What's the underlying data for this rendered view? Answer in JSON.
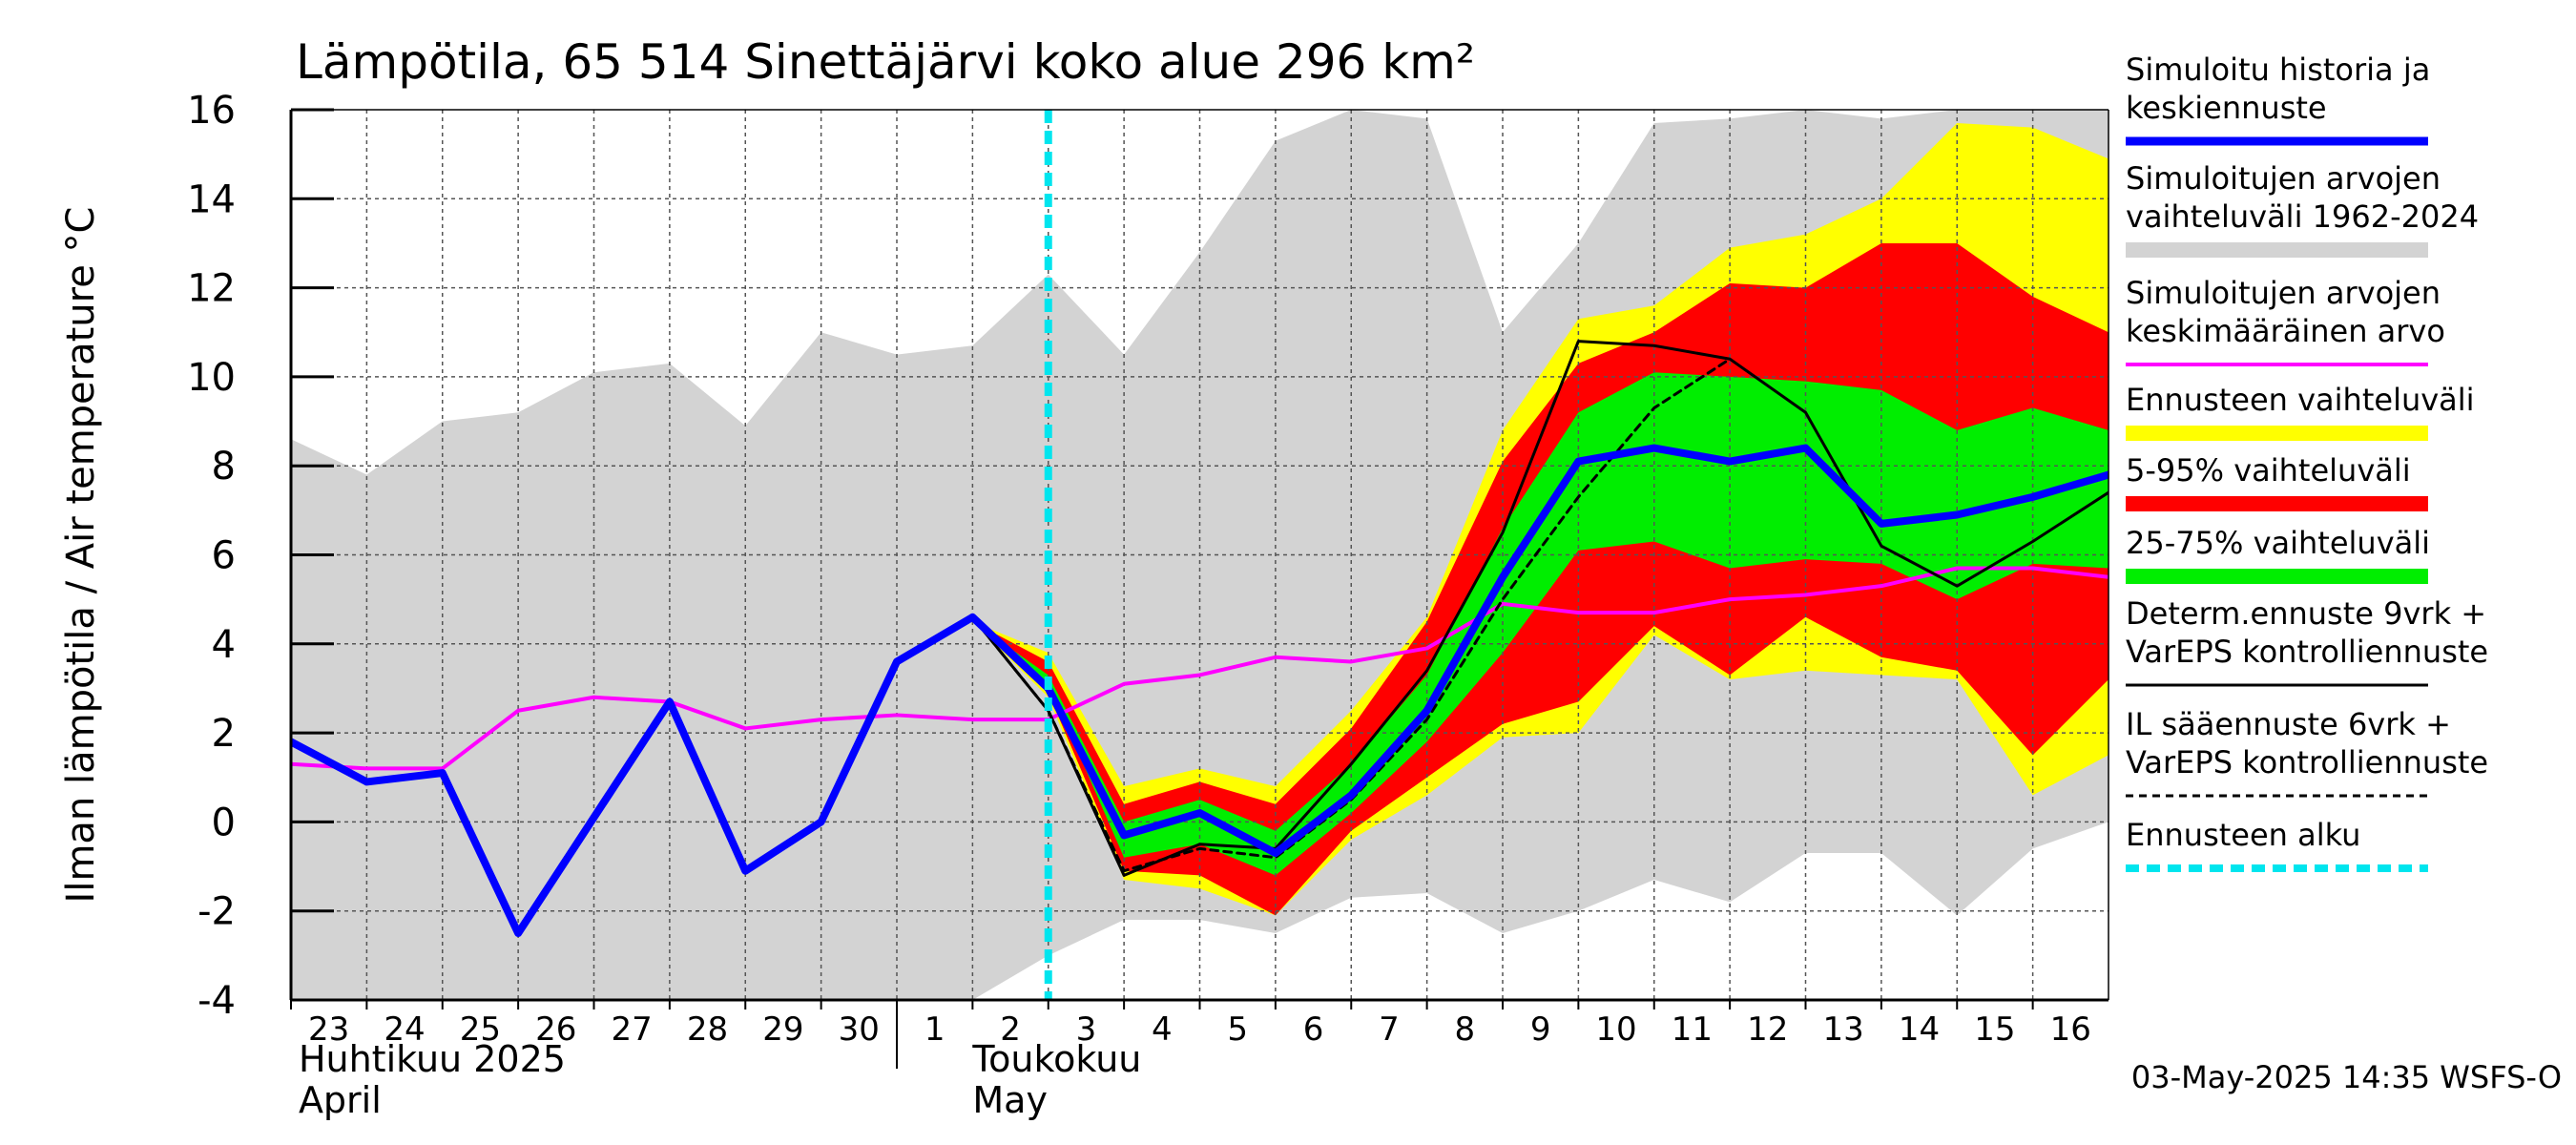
{
  "chart_data": {
    "type": "line",
    "title": "Lämpötila, 65 514 Sinettäjärvi koko alue 296 km²",
    "ylabel": "Ilman lämpötila / Air temperature   °C",
    "ylim": [
      -4,
      16
    ],
    "yticks": [
      -4,
      -2,
      0,
      2,
      4,
      6,
      8,
      10,
      12,
      14,
      16
    ],
    "xlim": [
      0,
      24
    ],
    "x_tick_labels": [
      "23",
      "24",
      "25",
      "26",
      "27",
      "28",
      "29",
      "30",
      "1",
      "2",
      "3",
      "4",
      "5",
      "6",
      "7",
      "8",
      "9",
      "10",
      "11",
      "12",
      "13",
      "14",
      "15",
      "16"
    ],
    "month_labels": [
      {
        "fi": "Huhtikuu  2025",
        "en": "April"
      },
      {
        "fi": "Toukokuu",
        "en": "May"
      }
    ],
    "forecast_start_x": 10.0,
    "grid": true,
    "legend_position": "right",
    "legend": [
      {
        "text": [
          "Simuloitu historia ja",
          "keskiennuste"
        ],
        "color": "#0000ff",
        "style": "thick"
      },
      {
        "text": [
          "Simuloitujen arvojen",
          "vaihteluväli 1962-2024"
        ],
        "color": "#d3d3d3",
        "style": "band"
      },
      {
        "text": [
          "Simuloitujen arvojen",
          "keskimääräinen arvo"
        ],
        "color": "#ff00ff",
        "style": "thin"
      },
      {
        "text": [
          "Ennusteen vaihteluväli"
        ],
        "color": "#ffff00",
        "style": "band"
      },
      {
        "text": [
          "5-95% vaihteluväli"
        ],
        "color": "#ff0000",
        "style": "band"
      },
      {
        "text": [
          "25-75% vaihteluväli"
        ],
        "color": "#00ee00",
        "style": "band"
      },
      {
        "text": [
          "Determ.ennuste 9vrk +",
          "VarEPS kontrolliennuste"
        ],
        "color": "#000000",
        "style": "thinline"
      },
      {
        "text": [
          "IL sääennuste 6vrk  +",
          "  VarEPS kontrolliennuste"
        ],
        "color": "#000000",
        "style": "dashed"
      },
      {
        "text": [
          "Ennusteen alku"
        ],
        "color": "#00e5ee",
        "style": "dashedthick"
      }
    ],
    "series": {
      "history_range": {
        "x": [
          0,
          1,
          2,
          3,
          4,
          5,
          6,
          7,
          8,
          9,
          10,
          11,
          12,
          13,
          14,
          15,
          16,
          17,
          18,
          19,
          20,
          21,
          22,
          23,
          24
        ],
        "upper": [
          8.6,
          7.8,
          9.0,
          9.2,
          10.1,
          10.3,
          8.9,
          11.0,
          10.5,
          10.7,
          12.3,
          10.5,
          12.8,
          15.3,
          16.0,
          15.8,
          11.0,
          13.0,
          15.7,
          15.8,
          16.0,
          15.8,
          16.0,
          16.0,
          16.0
        ],
        "lower": [
          -4.0,
          -4.0,
          -4.0,
          -4.0,
          -4.0,
          -4.0,
          -4.0,
          -4.0,
          -4.0,
          -4.0,
          -3.0,
          -2.2,
          -2.2,
          -2.5,
          -1.7,
          -1.6,
          -2.5,
          -2.0,
          -1.3,
          -1.8,
          -0.7,
          -0.7,
          -2.1,
          -0.6,
          0.0
        ]
      },
      "forecast_range": {
        "x": [
          9,
          10,
          11,
          12,
          13,
          14,
          15,
          16,
          17,
          18,
          19,
          20,
          21,
          22,
          23,
          24
        ],
        "upper": [
          4.5,
          3.8,
          0.8,
          1.2,
          0.8,
          2.5,
          4.6,
          8.8,
          11.3,
          11.6,
          12.9,
          13.2,
          14.0,
          15.7,
          15.6,
          14.9
        ],
        "lower": [
          4.5,
          2.8,
          -1.3,
          -1.5,
          -2.1,
          -0.4,
          0.6,
          1.9,
          2.0,
          4.2,
          3.2,
          3.4,
          3.3,
          3.2,
          0.6,
          1.5
        ]
      },
      "p5_95": {
        "x": [
          9,
          10,
          11,
          12,
          13,
          14,
          15,
          16,
          17,
          18,
          19,
          20,
          21,
          22,
          23,
          24
        ],
        "upper": [
          4.5,
          3.6,
          0.4,
          0.9,
          0.4,
          2.1,
          4.5,
          8.1,
          10.3,
          11.0,
          12.1,
          12.0,
          13.0,
          13.0,
          11.8,
          11.0
        ],
        "lower": [
          4.5,
          2.9,
          -1.1,
          -1.2,
          -2.1,
          -0.2,
          1.0,
          2.2,
          2.7,
          4.4,
          3.3,
          4.6,
          3.7,
          3.4,
          1.5,
          3.2
        ]
      },
      "p25_75": {
        "x": [
          9,
          10,
          11,
          12,
          13,
          14,
          15,
          16,
          17,
          18,
          19,
          20,
          21,
          22,
          23,
          24
        ],
        "upper": [
          4.5,
          3.3,
          0.0,
          0.5,
          -0.2,
          1.3,
          3.3,
          6.6,
          9.2,
          10.1,
          10.0,
          9.9,
          9.7,
          8.8,
          9.3,
          8.8
        ],
        "lower": [
          4.5,
          3.1,
          -0.8,
          -0.5,
          -1.2,
          0.2,
          1.8,
          3.8,
          6.1,
          6.3,
          5.7,
          5.9,
          5.8,
          5.0,
          5.8,
          5.7
        ]
      },
      "mean": {
        "x": [
          0,
          1,
          2,
          3,
          4,
          5,
          6,
          7,
          8,
          9,
          10,
          11,
          12,
          13,
          14,
          15,
          16,
          17,
          18,
          19,
          20,
          21,
          22,
          23,
          24
        ],
        "y": [
          1.3,
          1.2,
          1.2,
          2.5,
          2.8,
          2.7,
          2.1,
          2.3,
          2.4,
          2.3,
          2.3,
          3.1,
          3.3,
          3.7,
          3.6,
          3.9,
          4.9,
          4.7,
          4.7,
          5.0,
          5.1,
          5.3,
          5.7,
          5.7,
          5.5
        ]
      },
      "simulated": {
        "x": [
          0,
          1,
          2,
          3,
          4,
          5,
          6,
          7,
          8,
          9,
          10,
          11,
          12,
          13,
          14,
          15,
          16,
          17,
          18,
          19,
          20,
          21,
          22,
          23,
          24
        ],
        "y": [
          1.8,
          0.9,
          1.1,
          -2.5,
          0.1,
          2.7,
          -1.1,
          0.0,
          3.6,
          4.6,
          3.0,
          -0.3,
          0.2,
          -0.7,
          0.6,
          2.5,
          5.5,
          8.1,
          8.4,
          8.1,
          8.4,
          6.7,
          6.9,
          7.3,
          7.8
        ]
      },
      "deterministic": {
        "x": [
          9,
          10,
          11,
          12,
          13,
          14,
          15,
          16,
          17,
          18,
          19,
          20,
          21,
          22,
          23,
          24
        ],
        "y": [
          4.6,
          2.5,
          -1.2,
          -0.5,
          -0.6,
          1.3,
          3.4,
          6.5,
          10.8,
          10.7,
          10.4,
          9.2,
          6.2,
          5.3,
          6.3,
          7.4
        ]
      },
      "il_forecast": {
        "x": [
          9,
          10,
          11,
          12,
          13,
          14,
          15,
          16,
          17,
          18,
          19
        ],
        "y": [
          4.6,
          2.5,
          -1.1,
          -0.6,
          -0.8,
          0.5,
          2.3,
          5.0,
          7.3,
          9.3,
          10.4
        ]
      }
    }
  },
  "timestamp": "03-May-2025 14:35 WSFS-O",
  "colors": {
    "history_range": "#d3d3d3",
    "forecast_range": "#ffff00",
    "p5_95": "#ff0000",
    "p25_75": "#00ee00",
    "mean": "#ff00ff",
    "simulated": "#0000ff",
    "deterministic": "#000000",
    "forecast_start": "#00e5ee"
  }
}
